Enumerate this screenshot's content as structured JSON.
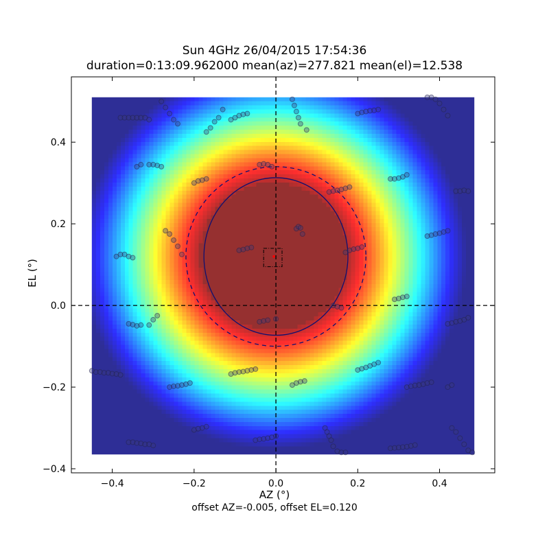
{
  "chart_data": {
    "type": "heatmap",
    "title": "Sun 4GHz 26/04/2015 17:54:36",
    "subtitle": "duration=0:13:09.962000 mean(az)=277.821 mean(el)=12.538",
    "xlabel": "AZ (°)",
    "ylabel": "EL (°)",
    "footer": "offset AZ=-0.005, offset EL=0.120",
    "xlim": [
      -0.5,
      0.535
    ],
    "ylim": [
      -0.41,
      0.56
    ],
    "xticks": [
      -0.4,
      -0.2,
      0.0,
      0.2,
      0.4
    ],
    "xtick_labels": [
      "−0.4",
      "−0.2",
      "0.0",
      "0.2",
      "0.4"
    ],
    "yticks": [
      -0.4,
      -0.2,
      0.0,
      0.2,
      0.4
    ],
    "ytick_labels": [
      "−0.4",
      "−0.2",
      "0.0",
      "0.2",
      "0.4"
    ],
    "heatmap": {
      "extent_x": [
        -0.45,
        0.485
      ],
      "extent_y": [
        -0.365,
        0.51
      ],
      "colormap": "jet",
      "beam_center": [
        -0.005,
        0.12
      ],
      "saturation_color": "#963030"
    },
    "fitted_ellipse": {
      "center": [
        0.0,
        0.12
      ],
      "rx": 0.176,
      "ry": 0.193,
      "color": "#101070"
    },
    "outer_circle": {
      "center": [
        0.0,
        0.12
      ],
      "radius": 0.22,
      "style": "dashed"
    },
    "center_box": {
      "x": [
        -0.03,
        0.015
      ],
      "y": [
        0.095,
        0.14
      ],
      "style": "dash-dot"
    },
    "crosshair": {
      "x": 0.0,
      "y": 0.0,
      "style": "dashed"
    },
    "peak_marker": {
      "x": -0.005,
      "y": 0.12,
      "color": "#ff0000"
    },
    "scan_points": [
      {
        "x": -0.38,
        "y": 0.46
      },
      {
        "x": -0.37,
        "y": 0.46
      },
      {
        "x": -0.36,
        "y": 0.46
      },
      {
        "x": -0.35,
        "y": 0.46
      },
      {
        "x": -0.34,
        "y": 0.46
      },
      {
        "x": -0.33,
        "y": 0.46
      },
      {
        "x": -0.32,
        "y": 0.46
      },
      {
        "x": -0.31,
        "y": 0.455
      },
      {
        "x": -0.28,
        "y": 0.5
      },
      {
        "x": -0.27,
        "y": 0.485
      },
      {
        "x": -0.26,
        "y": 0.47
      },
      {
        "x": -0.25,
        "y": 0.455
      },
      {
        "x": -0.24,
        "y": 0.445
      },
      {
        "x": -0.17,
        "y": 0.425
      },
      {
        "x": -0.16,
        "y": 0.435
      },
      {
        "x": -0.15,
        "y": 0.45
      },
      {
        "x": -0.14,
        "y": 0.46
      },
      {
        "x": -0.13,
        "y": 0.48
      },
      {
        "x": -0.11,
        "y": 0.455
      },
      {
        "x": -0.1,
        "y": 0.46
      },
      {
        "x": -0.09,
        "y": 0.465
      },
      {
        "x": -0.08,
        "y": 0.468
      },
      {
        "x": -0.07,
        "y": 0.47
      },
      {
        "x": 0.04,
        "y": 0.505
      },
      {
        "x": 0.045,
        "y": 0.49
      },
      {
        "x": 0.05,
        "y": 0.475
      },
      {
        "x": 0.055,
        "y": 0.46
      },
      {
        "x": 0.06,
        "y": 0.445
      },
      {
        "x": 0.075,
        "y": 0.43
      },
      {
        "x": 0.2,
        "y": 0.47
      },
      {
        "x": 0.21,
        "y": 0.473
      },
      {
        "x": 0.22,
        "y": 0.475
      },
      {
        "x": 0.23,
        "y": 0.477
      },
      {
        "x": 0.24,
        "y": 0.478
      },
      {
        "x": 0.25,
        "y": 0.48
      },
      {
        "x": 0.37,
        "y": 0.51
      },
      {
        "x": 0.38,
        "y": 0.51
      },
      {
        "x": 0.39,
        "y": 0.505
      },
      {
        "x": 0.4,
        "y": 0.495
      },
      {
        "x": 0.41,
        "y": 0.48
      },
      {
        "x": 0.42,
        "y": 0.465
      },
      {
        "x": -0.34,
        "y": 0.34
      },
      {
        "x": -0.33,
        "y": 0.345
      },
      {
        "x": -0.31,
        "y": 0.345
      },
      {
        "x": -0.3,
        "y": 0.345
      },
      {
        "x": -0.29,
        "y": 0.343
      },
      {
        "x": -0.28,
        "y": 0.34
      },
      {
        "x": -0.2,
        "y": 0.3
      },
      {
        "x": -0.19,
        "y": 0.305
      },
      {
        "x": -0.18,
        "y": 0.307
      },
      {
        "x": -0.17,
        "y": 0.31
      },
      {
        "x": -0.04,
        "y": 0.345
      },
      {
        "x": -0.03,
        "y": 0.347
      },
      {
        "x": -0.02,
        "y": 0.345
      },
      {
        "x": -0.01,
        "y": 0.34
      },
      {
        "x": 0.13,
        "y": 0.278
      },
      {
        "x": 0.14,
        "y": 0.28
      },
      {
        "x": 0.15,
        "y": 0.282
      },
      {
        "x": 0.16,
        "y": 0.284
      },
      {
        "x": 0.17,
        "y": 0.287
      },
      {
        "x": 0.18,
        "y": 0.29
      },
      {
        "x": 0.28,
        "y": 0.31
      },
      {
        "x": 0.29,
        "y": 0.31
      },
      {
        "x": 0.3,
        "y": 0.312
      },
      {
        "x": 0.31,
        "y": 0.315
      },
      {
        "x": 0.32,
        "y": 0.32
      },
      {
        "x": 0.44,
        "y": 0.28
      },
      {
        "x": 0.45,
        "y": 0.28
      },
      {
        "x": 0.46,
        "y": 0.282
      },
      {
        "x": 0.47,
        "y": 0.28
      },
      {
        "x": -0.27,
        "y": 0.183
      },
      {
        "x": -0.26,
        "y": 0.175
      },
      {
        "x": -0.25,
        "y": 0.16
      },
      {
        "x": -0.24,
        "y": 0.145
      },
      {
        "x": -0.23,
        "y": 0.125
      },
      {
        "x": -0.09,
        "y": 0.135
      },
      {
        "x": -0.08,
        "y": 0.137
      },
      {
        "x": -0.07,
        "y": 0.14
      },
      {
        "x": -0.06,
        "y": 0.142
      },
      {
        "x": 0.05,
        "y": 0.188
      },
      {
        "x": 0.055,
        "y": 0.193
      },
      {
        "x": 0.06,
        "y": 0.19
      },
      {
        "x": 0.065,
        "y": 0.175
      },
      {
        "x": 0.17,
        "y": 0.13
      },
      {
        "x": 0.18,
        "y": 0.135
      },
      {
        "x": 0.19,
        "y": 0.138
      },
      {
        "x": 0.2,
        "y": 0.14
      },
      {
        "x": 0.21,
        "y": 0.143
      },
      {
        "x": 0.37,
        "y": 0.17
      },
      {
        "x": 0.38,
        "y": 0.172
      },
      {
        "x": 0.39,
        "y": 0.175
      },
      {
        "x": 0.4,
        "y": 0.177
      },
      {
        "x": 0.41,
        "y": 0.18
      },
      {
        "x": 0.42,
        "y": 0.183
      },
      {
        "x": -0.39,
        "y": 0.12
      },
      {
        "x": -0.38,
        "y": 0.125
      },
      {
        "x": -0.37,
        "y": 0.125
      },
      {
        "x": -0.36,
        "y": 0.12
      },
      {
        "x": -0.35,
        "y": 0.117
      },
      {
        "x": 0.29,
        "y": 0.015
      },
      {
        "x": 0.3,
        "y": 0.017
      },
      {
        "x": 0.31,
        "y": 0.02
      },
      {
        "x": 0.32,
        "y": 0.022
      },
      {
        "x": -0.36,
        "y": -0.045
      },
      {
        "x": -0.35,
        "y": -0.047
      },
      {
        "x": -0.34,
        "y": -0.05
      },
      {
        "x": -0.33,
        "y": -0.048
      },
      {
        "x": -0.31,
        "y": -0.048
      },
      {
        "x": -0.3,
        "y": -0.035
      },
      {
        "x": -0.29,
        "y": -0.025
      },
      {
        "x": -0.04,
        "y": -0.04
      },
      {
        "x": -0.03,
        "y": -0.038
      },
      {
        "x": -0.02,
        "y": -0.036
      },
      {
        "x": 0.0,
        "y": -0.033
      },
      {
        "x": 0.14,
        "y": 0.0
      },
      {
        "x": 0.15,
        "y": -0.003
      },
      {
        "x": 0.16,
        "y": -0.006
      },
      {
        "x": 0.42,
        "y": -0.045
      },
      {
        "x": 0.43,
        "y": -0.043
      },
      {
        "x": 0.44,
        "y": -0.04
      },
      {
        "x": 0.45,
        "y": -0.038
      },
      {
        "x": 0.46,
        "y": -0.035
      },
      {
        "x": 0.47,
        "y": -0.03
      },
      {
        "x": -0.45,
        "y": -0.16
      },
      {
        "x": -0.44,
        "y": -0.163
      },
      {
        "x": -0.43,
        "y": -0.163
      },
      {
        "x": -0.42,
        "y": -0.165
      },
      {
        "x": -0.41,
        "y": -0.165
      },
      {
        "x": -0.4,
        "y": -0.167
      },
      {
        "x": -0.39,
        "y": -0.168
      },
      {
        "x": -0.38,
        "y": -0.17
      },
      {
        "x": -0.26,
        "y": -0.2
      },
      {
        "x": -0.25,
        "y": -0.198
      },
      {
        "x": -0.24,
        "y": -0.197
      },
      {
        "x": -0.23,
        "y": -0.195
      },
      {
        "x": -0.22,
        "y": -0.193
      },
      {
        "x": -0.21,
        "y": -0.19
      },
      {
        "x": -0.11,
        "y": -0.168
      },
      {
        "x": -0.1,
        "y": -0.165
      },
      {
        "x": -0.09,
        "y": -0.163
      },
      {
        "x": -0.08,
        "y": -0.162
      },
      {
        "x": -0.07,
        "y": -0.16
      },
      {
        "x": -0.06,
        "y": -0.158
      },
      {
        "x": -0.05,
        "y": -0.156
      },
      {
        "x": 0.04,
        "y": -0.195
      },
      {
        "x": 0.05,
        "y": -0.19
      },
      {
        "x": 0.06,
        "y": -0.187
      },
      {
        "x": 0.07,
        "y": -0.185
      },
      {
        "x": 0.2,
        "y": -0.158
      },
      {
        "x": 0.21,
        "y": -0.155
      },
      {
        "x": 0.22,
        "y": -0.152
      },
      {
        "x": 0.23,
        "y": -0.148
      },
      {
        "x": 0.24,
        "y": -0.144
      },
      {
        "x": 0.25,
        "y": -0.14
      },
      {
        "x": 0.32,
        "y": -0.2
      },
      {
        "x": 0.33,
        "y": -0.198
      },
      {
        "x": 0.34,
        "y": -0.196
      },
      {
        "x": 0.35,
        "y": -0.195
      },
      {
        "x": 0.36,
        "y": -0.193
      },
      {
        "x": 0.37,
        "y": -0.19
      },
      {
        "x": 0.38,
        "y": -0.188
      },
      {
        "x": 0.42,
        "y": -0.2
      },
      {
        "x": 0.43,
        "y": -0.195
      },
      {
        "x": -0.2,
        "y": -0.305
      },
      {
        "x": -0.19,
        "y": -0.302
      },
      {
        "x": -0.18,
        "y": -0.3
      },
      {
        "x": -0.17,
        "y": -0.297
      },
      {
        "x": -0.05,
        "y": -0.33
      },
      {
        "x": -0.04,
        "y": -0.328
      },
      {
        "x": -0.03,
        "y": -0.327
      },
      {
        "x": -0.02,
        "y": -0.325
      },
      {
        "x": -0.01,
        "y": -0.323
      },
      {
        "x": 0.0,
        "y": -0.32
      },
      {
        "x": 0.12,
        "y": -0.3
      },
      {
        "x": 0.125,
        "y": -0.31
      },
      {
        "x": 0.13,
        "y": -0.32
      },
      {
        "x": 0.135,
        "y": -0.33
      },
      {
        "x": 0.14,
        "y": -0.345
      },
      {
        "x": 0.15,
        "y": -0.357
      },
      {
        "x": 0.16,
        "y": -0.36
      },
      {
        "x": 0.17,
        "y": -0.36
      },
      {
        "x": 0.28,
        "y": -0.35
      },
      {
        "x": 0.29,
        "y": -0.349
      },
      {
        "x": 0.3,
        "y": -0.348
      },
      {
        "x": 0.31,
        "y": -0.347
      },
      {
        "x": 0.32,
        "y": -0.346
      },
      {
        "x": 0.33,
        "y": -0.344
      },
      {
        "x": 0.34,
        "y": -0.342
      },
      {
        "x": 0.43,
        "y": -0.3
      },
      {
        "x": 0.44,
        "y": -0.31
      },
      {
        "x": 0.45,
        "y": -0.325
      },
      {
        "x": 0.46,
        "y": -0.34
      },
      {
        "x": 0.47,
        "y": -0.355
      },
      {
        "x": 0.48,
        "y": -0.36
      },
      {
        "x": -0.36,
        "y": -0.335
      },
      {
        "x": -0.35,
        "y": -0.335
      },
      {
        "x": -0.34,
        "y": -0.337
      },
      {
        "x": -0.33,
        "y": -0.338
      },
      {
        "x": -0.32,
        "y": -0.34
      },
      {
        "x": -0.31,
        "y": -0.34
      },
      {
        "x": -0.3,
        "y": -0.343
      }
    ]
  }
}
